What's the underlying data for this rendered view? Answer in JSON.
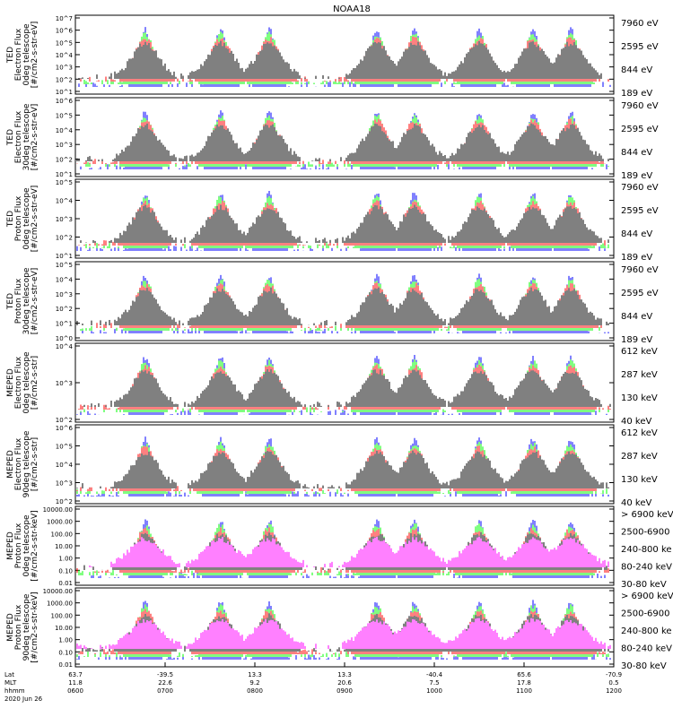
{
  "title": "NOAA18",
  "colors": {
    "blue": "#0000ff",
    "red": "#ff0000",
    "green": "#00ff00",
    "black": "#000000",
    "magenta": "#ff00ff"
  },
  "panels": [
    {
      "id": "ted-e-0",
      "ylabel": [
        "TED",
        "Electron Flux",
        "0deg telescope",
        "[#/cm2-s-str-eV]"
      ],
      "ticks": [
        "10^1",
        "10^2",
        "10^3",
        "10^4",
        "10^5",
        "10^6",
        "10^7"
      ],
      "legend": [
        {
          "text": "7960 eV",
          "color": "#000000"
        },
        {
          "text": "2595 eV",
          "color": "#ff0000"
        },
        {
          "text": "844 eV",
          "color": "#00ff00"
        },
        {
          "text": "189 eV",
          "color": "#0000ff"
        }
      ]
    },
    {
      "id": "ted-e-30",
      "ylabel": [
        "TED",
        "Electron Flux",
        "30deg telescope",
        "[#/cm2-s-str-eV]"
      ],
      "ticks": [
        "10^1",
        "10^2",
        "10^3",
        "10^4",
        "10^5",
        "10^6"
      ],
      "legend": [
        {
          "text": "7960 eV",
          "color": "#000000"
        },
        {
          "text": "2595 eV",
          "color": "#ff0000"
        },
        {
          "text": "844 eV",
          "color": "#00ff00"
        },
        {
          "text": "189 eV",
          "color": "#0000ff"
        }
      ]
    },
    {
      "id": "ted-p-0",
      "ylabel": [
        "TED",
        "Proton Flux",
        "0deg telescope",
        "[#/cm2-s-str-eV]"
      ],
      "ticks": [
        "10^1",
        "10^2",
        "10^3",
        "10^4",
        "10^5"
      ],
      "legend": [
        {
          "text": "7960 eV",
          "color": "#000000"
        },
        {
          "text": "2595 eV",
          "color": "#ff0000"
        },
        {
          "text": "844 eV",
          "color": "#00ff00"
        },
        {
          "text": "189 eV",
          "color": "#0000ff"
        }
      ]
    },
    {
      "id": "ted-p-30",
      "ylabel": [
        "TED",
        "Proton Flux",
        "30deg telescope",
        "[#/cm2-s-str-eV]"
      ],
      "ticks": [
        "10^0",
        "10^1",
        "10^2",
        "10^3",
        "10^4",
        "10^5"
      ],
      "legend": [
        {
          "text": "7960 eV",
          "color": "#000000"
        },
        {
          "text": "2595 eV",
          "color": "#ff0000"
        },
        {
          "text": "844 eV",
          "color": "#00ff00"
        },
        {
          "text": "189 eV",
          "color": "#0000ff"
        }
      ]
    },
    {
      "id": "meped-e-0",
      "ylabel": [
        "MEPED",
        "Electron Flux",
        "0deg telescope",
        "[#/cm2-s-str]"
      ],
      "ticks": [
        "10^2",
        "10^3",
        "10^4"
      ],
      "legend": [
        {
          "text": "612 keV",
          "color": "#000000"
        },
        {
          "text": "287 keV",
          "color": "#ff0000"
        },
        {
          "text": "130 keV",
          "color": "#00ff00"
        },
        {
          "text": "40 keV",
          "color": "#0000ff"
        }
      ]
    },
    {
      "id": "meped-e-90",
      "ylabel": [
        "MEPED",
        "Electron Flux",
        "90deg telescope",
        "[#/cm2-s-str]"
      ],
      "ticks": [
        "10^2",
        "10^3",
        "10^4",
        "10^5",
        "10^6"
      ],
      "legend": [
        {
          "text": "612 keV",
          "color": "#000000"
        },
        {
          "text": "287 keV",
          "color": "#ff0000"
        },
        {
          "text": "130 keV",
          "color": "#00ff00"
        },
        {
          "text": "40 keV",
          "color": "#0000ff"
        }
      ]
    },
    {
      "id": "meped-p-0",
      "ylabel": [
        "MEPED",
        "Proton Flux",
        "0deg telescope",
        "[#/cm2-s-str-keV]"
      ],
      "ticks": [
        "0.01",
        "0.10",
        "1.00",
        "10.00",
        "100.00",
        "1000.00",
        "10000.00"
      ],
      "legend": [
        {
          "text": "> 6900 keV",
          "color": "#ff00ff"
        },
        {
          "text": "2500-6900",
          "color": "#000000"
        },
        {
          "text": "240-800 ke",
          "color": "#ff0000"
        },
        {
          "text": "80-240 keV",
          "color": "#00ff00"
        },
        {
          "text": "30-80 keV",
          "color": "#0000ff"
        }
      ]
    },
    {
      "id": "meped-p-90",
      "ylabel": [
        "MEPED",
        "Proton Flux",
        "90deg telescope",
        "[#/cm2-s-str-keV]"
      ],
      "ticks": [
        "0.01",
        "0.10",
        "1.00",
        "10.00",
        "100.00",
        "1000.00",
        "10000.00"
      ],
      "legend": [
        {
          "text": "> 6900 keV",
          "color": "#ff00ff"
        },
        {
          "text": "2500-6900",
          "color": "#000000"
        },
        {
          "text": "240-800 ke",
          "color": "#ff0000"
        },
        {
          "text": "80-240 keV",
          "color": "#00ff00"
        },
        {
          "text": "30-80 keV",
          "color": "#0000ff"
        }
      ]
    }
  ],
  "xaxis": {
    "rows": [
      "Lat",
      "MLT",
      "hhmm"
    ],
    "columns": [
      {
        "lat": "63.7",
        "mlt": "11.8",
        "hhmm": "0600"
      },
      {
        "lat": "-39.5",
        "mlt": "22.6",
        "hhmm": "0700"
      },
      {
        "lat": "13.3",
        "mlt": "9.2",
        "hhmm": "0800"
      },
      {
        "lat": "13.3",
        "mlt": "20.6",
        "hhmm": "0900"
      },
      {
        "lat": "-40.4",
        "mlt": "7.5",
        "hhmm": "1000"
      },
      {
        "lat": "65.6",
        "mlt": "17.8",
        "hhmm": "1100"
      },
      {
        "lat": "-70.9",
        "mlt": "0.5",
        "hhmm": "1200"
      }
    ],
    "date": "2020 Jun 26"
  },
  "chart_data": {
    "type": "line",
    "title": "NOAA18",
    "x_range": [
      "0600",
      "1200"
    ],
    "note_series": "Eight stacked time-series panels of particle flux (log scale) vs UT from 0600 to 1200; four energy channels per TED/MEPED electron panel, five per MEPED proton panel.",
    "pass_peaks_hhmm": [
      "0648",
      "0725",
      "0754",
      "0840",
      "0912",
      "0950",
      "1025",
      "1100",
      "1130"
    ]
  }
}
